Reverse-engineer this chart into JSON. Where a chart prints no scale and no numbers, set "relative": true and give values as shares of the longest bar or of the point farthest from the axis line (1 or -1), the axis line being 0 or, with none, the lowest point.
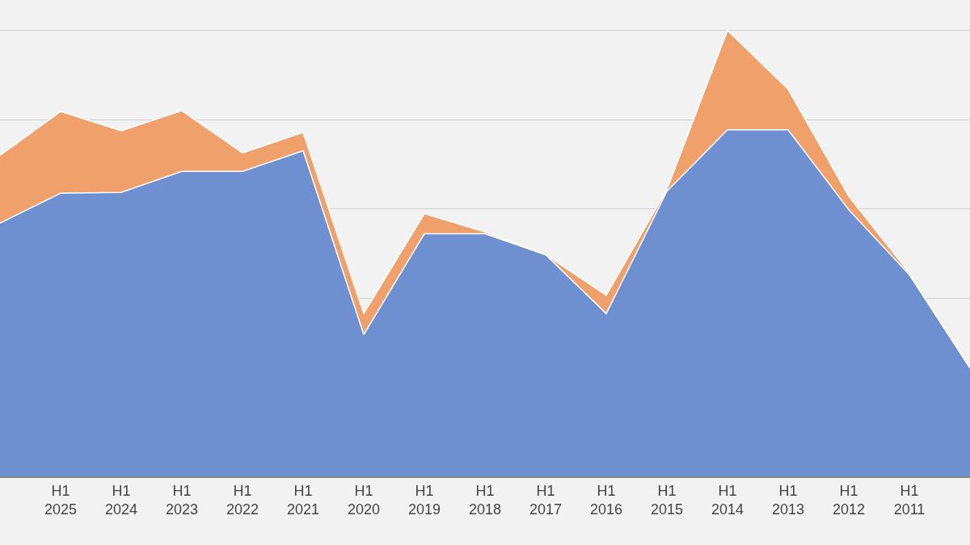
{
  "chart_data": {
    "type": "area",
    "relative": true,
    "stacked": true,
    "grid": "y",
    "legend": false,
    "categories": [
      null,
      "H1 2025",
      "H1 2024",
      "H1 2023",
      "H1 2022",
      "H1 2021",
      "H1 2020",
      "H1 2019",
      "H1 2018",
      "H1 2017",
      "H1 2016",
      "H1 2015",
      "H1 2014",
      "H1 2013",
      "H1 2012",
      "H1 2011",
      null
    ],
    "series": [
      {
        "color": "#6f90d0",
        "values": [
          0.568,
          0.635,
          0.637,
          0.684,
          0.684,
          0.73,
          0.318,
          0.544,
          0.544,
          0.497,
          0.365,
          0.639,
          0.777,
          0.777,
          0.598,
          0.452,
          0.243
        ]
      },
      {
        "color": "#f0a06a",
        "values": [
          0.152,
          0.183,
          0.138,
          0.136,
          0.041,
          0.041,
          0.047,
          0.045,
          0.004,
          0,
          0.041,
          0.004,
          0.223,
          0.091,
          0.03,
          0.004,
          0
        ]
      }
    ]
  }
}
